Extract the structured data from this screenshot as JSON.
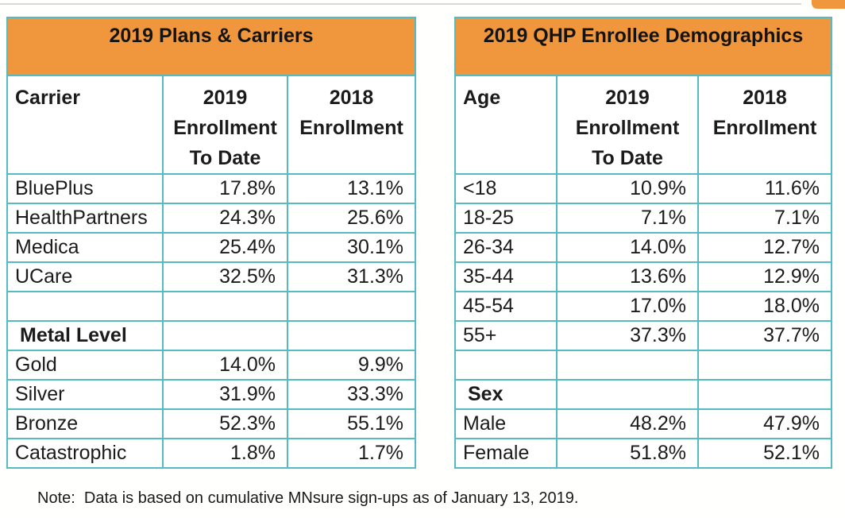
{
  "page": {
    "note": "Note:  Data is based on cumulative MNsure sign-ups as of January 13, 2019.",
    "colors": {
      "accent_orange": "#f0963c",
      "table_border_teal": "#55bbc1",
      "top_line_gray": "#d8d8d8",
      "text": "#1b1b1b",
      "background": "#ffffff"
    }
  },
  "left_table": {
    "title": "2019 Plans & Carriers",
    "columns": {
      "c0": "Carrier",
      "c1": "2019\nEnrollment\nTo Date",
      "c2": "2018\nEnrollment"
    },
    "rows": [
      {
        "label": "BluePlus",
        "v2019": "17.8%",
        "v2018": "13.1%",
        "bold": false
      },
      {
        "label": "HealthPartners",
        "v2019": "24.3%",
        "v2018": "25.6%",
        "bold": false
      },
      {
        "label": "Medica",
        "v2019": "25.4%",
        "v2018": "30.1%",
        "bold": false
      },
      {
        "label": "UCare",
        "v2019": "32.5%",
        "v2018": "31.3%",
        "bold": false
      },
      {
        "label": "",
        "v2019": "",
        "v2018": "",
        "bold": false
      },
      {
        "label": "Metal Level",
        "v2019": "",
        "v2018": "",
        "bold": true
      },
      {
        "label": "Gold",
        "v2019": "14.0%",
        "v2018": "9.9%",
        "bold": false
      },
      {
        "label": "Silver",
        "v2019": "31.9%",
        "v2018": "33.3%",
        "bold": false
      },
      {
        "label": "Bronze",
        "v2019": "52.3%",
        "v2018": "55.1%",
        "bold": false
      },
      {
        "label": "Catastrophic",
        "v2019": "1.8%",
        "v2018": "1.7%",
        "bold": false
      }
    ]
  },
  "right_table": {
    "title": "2019 QHP Enrollee Demographics",
    "columns": {
      "c0": "Age",
      "c1": "2019\nEnrollment\nTo Date",
      "c2": "2018\nEnrollment"
    },
    "rows": [
      {
        "label": "<18",
        "v2019": "10.9%",
        "v2018": "11.6%",
        "bold": false
      },
      {
        "label": "18-25",
        "v2019": "7.1%",
        "v2018": "7.1%",
        "bold": false
      },
      {
        "label": "26-34",
        "v2019": "14.0%",
        "v2018": "12.7%",
        "bold": false
      },
      {
        "label": "35-44",
        "v2019": "13.6%",
        "v2018": "12.9%",
        "bold": false
      },
      {
        "label": "45-54",
        "v2019": "17.0%",
        "v2018": "18.0%",
        "bold": false
      },
      {
        "label": "55+",
        "v2019": "37.3%",
        "v2018": "37.7%",
        "bold": false
      },
      {
        "label": "",
        "v2019": "",
        "v2018": "",
        "bold": false
      },
      {
        "label": "Sex",
        "v2019": "",
        "v2018": "",
        "bold": true
      },
      {
        "label": "Male",
        "v2019": "48.2%",
        "v2018": "47.9%",
        "bold": false
      },
      {
        "label": "Female",
        "v2019": "51.8%",
        "v2018": "52.1%",
        "bold": false
      }
    ]
  }
}
